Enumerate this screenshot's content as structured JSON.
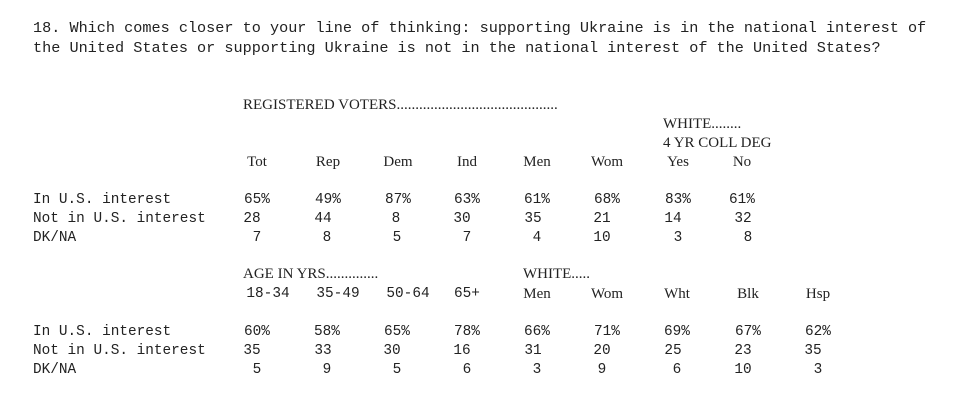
{
  "question": "18. Which comes closer to your line of thinking: supporting Ukraine is in the national interest of the United States or supporting Ukraine is not in the national interest of the United States?",
  "table1": {
    "group_header": "REGISTERED VOTERS...........................................",
    "white_header": "WHITE........",
    "coll_header": "4 YR COLL DEG",
    "columns": [
      "Tot",
      "Rep",
      "Dem",
      "Ind",
      "Men",
      "Wom",
      "Yes",
      "No"
    ],
    "rows": [
      {
        "label": "In U.S. interest",
        "values": [
          "65%",
          "49%",
          "87%",
          "63%",
          "61%",
          "68%",
          "83%",
          "61%"
        ]
      },
      {
        "label": "Not in U.S. interest",
        "values": [
          "28",
          "44",
          "8",
          "30",
          "35",
          "21",
          "14",
          "32"
        ]
      },
      {
        "label": "DK/NA",
        "values": [
          "7",
          "8",
          "5",
          "7",
          "4",
          "10",
          "3",
          "8"
        ]
      }
    ]
  },
  "table2": {
    "age_header": "AGE IN YRS..............",
    "white_header": "WHITE.....",
    "columns": [
      "18-34",
      "35-49",
      "50-64",
      "65+",
      "Men",
      "Wom",
      "Wht",
      "Blk",
      "Hsp"
    ],
    "rows": [
      {
        "label": "In U.S. interest",
        "values": [
          "60%",
          "58%",
          "65%",
          "78%",
          "66%",
          "71%",
          "69%",
          "67%",
          "62%"
        ]
      },
      {
        "label": "Not in U.S. interest",
        "values": [
          "35",
          "33",
          "30",
          "16",
          "31",
          "20",
          "25",
          "23",
          "35"
        ]
      },
      {
        "label": "DK/NA",
        "values": [
          "5",
          "9",
          "5",
          "6",
          "3",
          "9",
          "6",
          "10",
          "3"
        ]
      }
    ]
  }
}
